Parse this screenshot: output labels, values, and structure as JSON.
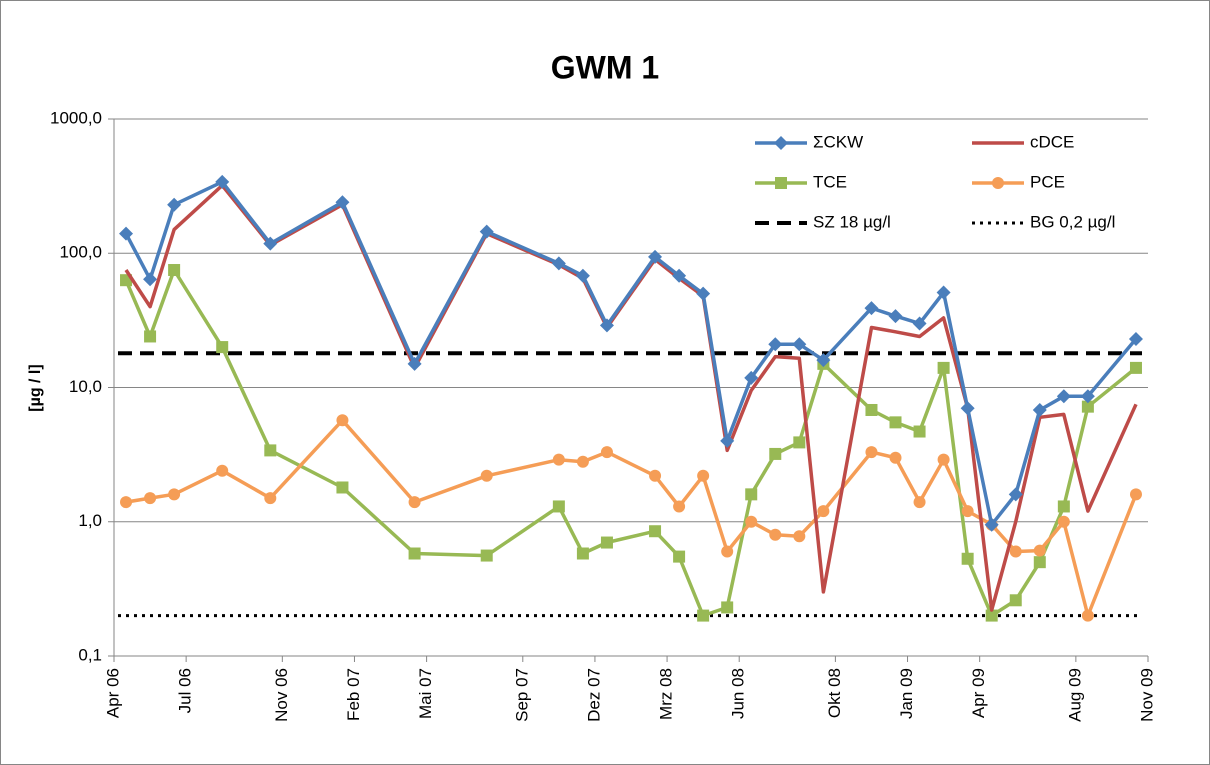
{
  "chart_data": {
    "type": "line",
    "title": "GWM 1",
    "y_label": "[µg / l]",
    "log_scale": true,
    "grid": true,
    "legend": "top-right",
    "x": [
      "2006-04",
      "2006-05",
      "2006-06",
      "2006-08",
      "2006-10",
      "2007-01",
      "2007-04",
      "2007-07",
      "2007-10",
      "2007-11",
      "2007-12",
      "2008-02",
      "2008-03",
      "2008-04",
      "2008-05",
      "2008-06",
      "2008-07",
      "2008-08",
      "2008-09",
      "2008-11",
      "2008-12",
      "2009-01",
      "2009-02",
      "2009-03",
      "2009-04",
      "2009-05",
      "2009-06",
      "2009-07",
      "2009-08",
      "2009-10"
    ],
    "xlim": [
      "2006-04",
      "2009-11"
    ],
    "xticks": [
      {
        "value": "2006-04",
        "label": "Apr 06"
      },
      {
        "value": "2006-07",
        "label": "Jul 06"
      },
      {
        "value": "2006-11",
        "label": "Nov 06"
      },
      {
        "value": "2007-02",
        "label": "Feb 07"
      },
      {
        "value": "2007-05",
        "label": "Mai 07"
      },
      {
        "value": "2007-09",
        "label": "Sep 07"
      },
      {
        "value": "2007-12",
        "label": "Dez 07"
      },
      {
        "value": "2008-03",
        "label": "Mrz 08"
      },
      {
        "value": "2008-06",
        "label": "Jun 08"
      },
      {
        "value": "2008-10",
        "label": "Okt 08"
      },
      {
        "value": "2009-01",
        "label": "Jan 09"
      },
      {
        "value": "2009-04",
        "label": "Apr 09"
      },
      {
        "value": "2009-08",
        "label": "Aug 09"
      },
      {
        "value": "2009-11",
        "label": "Nov 09"
      }
    ],
    "ylim": [
      0.1,
      1000
    ],
    "yticks": [
      {
        "value": 0.1,
        "label": "0,1"
      },
      {
        "value": 1,
        "label": "1,0"
      },
      {
        "value": 10,
        "label": "10,0"
      },
      {
        "value": 100,
        "label": "100,0"
      },
      {
        "value": 1000,
        "label": "1000,0"
      }
    ],
    "series": [
      {
        "name": "ΣCKW",
        "color": "#4a7ebb",
        "marker": "diamond",
        "values": [
          140,
          64,
          230,
          340,
          118,
          240,
          15,
          145,
          84,
          68,
          29,
          94,
          68,
          50,
          4.0,
          11.8,
          21,
          21,
          16,
          39,
          34,
          30,
          51,
          7,
          0.95,
          1.6,
          6.8,
          8.6,
          8.6,
          23
        ]
      },
      {
        "name": "cDCE",
        "color": "#be4b48",
        "marker": "none",
        "values": [
          75,
          40,
          150,
          320,
          115,
          230,
          14,
          140,
          82,
          65,
          28,
          90,
          65,
          48,
          3.4,
          9.5,
          17,
          16.5,
          0.3,
          28,
          26,
          24,
          33,
          7,
          0.22,
          1.0,
          6,
          6.3,
          1.2,
          7.5
        ]
      },
      {
        "name": "TCE",
        "color": "#98b954",
        "marker": "square",
        "values": [
          63,
          24,
          75,
          20,
          3.4,
          1.8,
          0.58,
          0.56,
          1.3,
          0.58,
          0.7,
          0.85,
          0.55,
          0.2,
          0.23,
          1.6,
          3.2,
          3.9,
          15,
          6.8,
          5.5,
          4.7,
          14,
          0.53,
          0.2,
          0.26,
          0.5,
          1.3,
          7.2,
          14
        ]
      },
      {
        "name": "PCE",
        "color": "#f59d56",
        "marker": "circle",
        "values": [
          1.4,
          1.5,
          1.6,
          2.4,
          1.5,
          5.7,
          1.4,
          2.2,
          2.9,
          2.8,
          3.3,
          2.2,
          1.3,
          2.2,
          0.6,
          1.0,
          0.8,
          0.78,
          1.2,
          3.3,
          3.0,
          1.4,
          2.9,
          1.2,
          0.95,
          0.6,
          0.61,
          1.0,
          0.2,
          1.6
        ]
      }
    ],
    "reference_lines": [
      {
        "name": "SZ 18 µg/l",
        "value": 18,
        "color": "#000000",
        "style": "dashed"
      },
      {
        "name": "BG 0,2 µg/l",
        "value": 0.2,
        "color": "#000000",
        "style": "dotted"
      }
    ]
  }
}
